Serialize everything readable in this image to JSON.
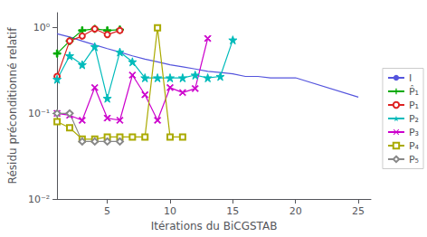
{
  "chart_data": {
    "type": "line",
    "log": "y",
    "grid": false,
    "legend": "right",
    "xlabel": "Itérations du BiCGSTAB",
    "ylabel": "Résidu préconditionné relatif",
    "xlim": [
      1,
      26
    ],
    "ylim": [
      0.01,
      1.5
    ],
    "xticks": [
      5,
      10,
      15,
      20,
      25
    ],
    "yticks": [
      {
        "value": 0.01,
        "label": "10⁻²"
      },
      {
        "value": 0.1,
        "label": "10⁻¹"
      },
      {
        "value": 1,
        "label": "10⁰"
      }
    ],
    "series": [
      {
        "name": "I",
        "color": "#5555dd",
        "marker": "none",
        "line_style": "solid",
        "x": [
          1,
          2,
          3,
          4,
          5,
          6,
          7,
          8,
          9,
          10,
          11,
          12,
          13,
          14,
          15,
          16,
          17,
          18,
          19,
          20,
          25
        ],
        "values": [
          0.85,
          0.78,
          0.7,
          0.63,
          0.57,
          0.52,
          0.47,
          0.43,
          0.4,
          0.37,
          0.35,
          0.33,
          0.31,
          0.3,
          0.29,
          0.27,
          0.27,
          0.26,
          0.26,
          0.26,
          0.155
        ]
      },
      {
        "name": "P̂₁",
        "color": "#00aa00",
        "marker": "plus",
        "line_style": "solid",
        "x": [
          1,
          2,
          3,
          4,
          5,
          6
        ],
        "values": [
          0.5,
          0.7,
          0.93,
          0.97,
          0.93,
          0.95
        ]
      },
      {
        "name": "P₁",
        "color": "#dd2222",
        "marker": "circle",
        "line_style": "solid",
        "x": [
          1,
          2,
          3,
          4,
          5,
          6
        ],
        "values": [
          0.27,
          0.7,
          0.8,
          0.97,
          0.83,
          0.93
        ]
      },
      {
        "name": "P₂",
        "color": "#00bbbb",
        "marker": "star",
        "line_style": "solid",
        "x": [
          1,
          2,
          3,
          4,
          5,
          6,
          7,
          8,
          9,
          10,
          11,
          12,
          13,
          14,
          15
        ],
        "values": [
          0.25,
          0.47,
          0.37,
          0.6,
          0.15,
          0.52,
          0.4,
          0.26,
          0.26,
          0.26,
          0.26,
          0.28,
          0.26,
          0.27,
          0.72
        ]
      },
      {
        "name": "P₃",
        "color": "#cc00cc",
        "marker": "x",
        "line_style": "solid",
        "x": [
          1,
          2,
          3,
          4,
          5,
          6,
          7,
          8,
          9,
          10,
          11,
          12,
          13
        ],
        "values": [
          0.1,
          0.095,
          0.083,
          0.2,
          0.088,
          0.083,
          0.28,
          0.165,
          0.083,
          0.2,
          0.175,
          0.195,
          0.75
        ]
      },
      {
        "name": "P₄",
        "color": "#aaaa00",
        "marker": "square",
        "line_style": "solid",
        "x": [
          1,
          2,
          3,
          4,
          5,
          6,
          7,
          8,
          9,
          10,
          11
        ],
        "values": [
          0.08,
          0.068,
          0.05,
          0.05,
          0.053,
          0.053,
          0.053,
          0.053,
          1.0,
          0.053,
          0.053
        ]
      },
      {
        "name": "P₅",
        "color": "#888888",
        "marker": "diamond",
        "line_style": "solid",
        "x": [
          1,
          2,
          3,
          4,
          5,
          6
        ],
        "values": [
          0.1,
          0.1,
          0.047,
          0.047,
          0.047,
          0.047
        ]
      }
    ]
  }
}
